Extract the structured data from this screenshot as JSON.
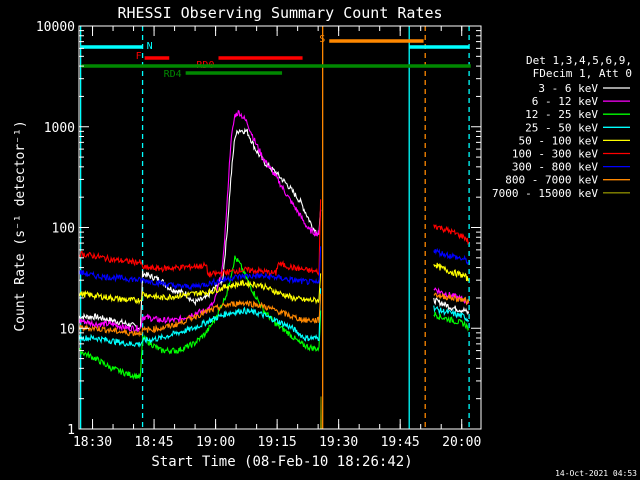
{
  "chart_data": {
    "type": "line",
    "title": "RHESSI Observing Summary Count Rates",
    "xlabel": "Start Time (08-Feb-10 18:26:42)",
    "ylabel": "Count Rate (s⁻¹ detector⁻¹)",
    "y_scale": "log",
    "ylim": [
      1,
      10000
    ],
    "xlim_minutes_after_1826": [
      0,
      98
    ],
    "x_ticks": [
      {
        "label": "18:30",
        "minute": 3.3
      },
      {
        "label": "18:45",
        "minute": 18.3
      },
      {
        "label": "19:00",
        "minute": 33.3
      },
      {
        "label": "19:15",
        "minute": 48.3
      },
      {
        "label": "19:30",
        "minute": 63.3
      },
      {
        "label": "19:45",
        "minute": 78.3
      },
      {
        "label": "20:00",
        "minute": 93.3
      }
    ],
    "y_ticks": [
      "1",
      "10",
      "100",
      "1000",
      "10000"
    ],
    "legend": {
      "header": [
        "Det 1,3,4,5,6,9,",
        "FDecim 1, Att 0"
      ],
      "placement": "right"
    },
    "flags": [
      {
        "label": "N",
        "color": "#00ffff",
        "segments": [
          [
            0.5,
            15.5
          ],
          [
            80.5,
            95
          ]
        ]
      },
      {
        "label": "F",
        "color": "#ff0000",
        "segments": [
          [
            16,
            22
          ]
        ]
      },
      {
        "label": "RD0",
        "color": "#ff0000",
        "segments": [
          [
            34,
            54.5
          ]
        ]
      },
      {
        "label": "RD4",
        "color": "#008800",
        "segments": [
          [
            26,
            49.5
          ]
        ]
      },
      {
        "label": "S",
        "color": "#ff8800",
        "segments": [
          [
            61,
            84
          ]
        ]
      },
      {
        "label": "",
        "color": "#008800",
        "segments": [
          [
            0.5,
            95.5
          ]
        ]
      }
    ],
    "vertical_markers": [
      {
        "minute": 0.4,
        "color": "#00ffff",
        "style": "solid"
      },
      {
        "minute": 15.5,
        "color": "#00ffff",
        "style": "dashed"
      },
      {
        "minute": 59.4,
        "color": "#ff8800",
        "style": "solid"
      },
      {
        "minute": 80.5,
        "color": "#00ffff",
        "style": "solid"
      },
      {
        "minute": 84.4,
        "color": "#ff8800",
        "style": "dashed"
      },
      {
        "minute": 95.1,
        "color": "#00ffff",
        "style": "dashed"
      }
    ],
    "series": [
      {
        "name": "3 - 6 keV",
        "color": "#ffffff",
        "segments": [
          [
            [
              0,
              13
            ],
            [
              4,
              13
            ],
            [
              8,
              12
            ],
            [
              12,
              11
            ],
            [
              15,
              10
            ],
            [
              15.5,
              35
            ],
            [
              20,
              30
            ],
            [
              22,
              25
            ],
            [
              26,
              22
            ],
            [
              28,
              18
            ],
            [
              31,
              20
            ],
            [
              33,
              25
            ],
            [
              35,
              30
            ],
            [
              36,
              80
            ],
            [
              37,
              300
            ],
            [
              38,
              800
            ],
            [
              39,
              930
            ],
            [
              41,
              900
            ],
            [
              43,
              600
            ],
            [
              45,
              450
            ],
            [
              48,
              350
            ],
            [
              51,
              260
            ],
            [
              54,
              180
            ],
            [
              57,
              100
            ],
            [
              58.5,
              85
            ],
            [
              58.9,
              150
            ]
          ],
          [
            [
              86.5,
              19
            ],
            [
              88,
              18
            ],
            [
              91,
              16
            ],
            [
              94,
              15
            ],
            [
              95,
              14
            ]
          ]
        ]
      },
      {
        "name": "6 - 12 keV",
        "color": "#ff00ff",
        "segments": [
          [
            [
              0,
              12
            ],
            [
              4,
              11
            ],
            [
              8,
              11
            ],
            [
              12,
              10
            ],
            [
              15,
              10
            ],
            [
              15.5,
              13
            ],
            [
              20,
              12
            ],
            [
              24,
              12
            ],
            [
              28,
              14
            ],
            [
              31,
              15
            ],
            [
              33,
              18
            ],
            [
              35,
              40
            ],
            [
              36,
              150
            ],
            [
              37,
              700
            ],
            [
              38,
              1300
            ],
            [
              39,
              1400
            ],
            [
              41,
              1100
            ],
            [
              43,
              700
            ],
            [
              45,
              480
            ],
            [
              48,
              320
            ],
            [
              51,
              200
            ],
            [
              54,
              130
            ],
            [
              56,
              95
            ],
            [
              58.5,
              85
            ],
            [
              58.9,
              150
            ]
          ],
          [
            [
              86.5,
              25
            ],
            [
              88,
              23
            ],
            [
              91,
              21
            ],
            [
              94,
              19
            ],
            [
              95,
              18
            ]
          ]
        ]
      },
      {
        "name": "12 - 25 keV",
        "color": "#00ff00",
        "segments": [
          [
            [
              0,
              6
            ],
            [
              4,
              5
            ],
            [
              8,
              4
            ],
            [
              12,
              3.5
            ],
            [
              15,
              3.3
            ],
            [
              15.5,
              8
            ],
            [
              20,
              6
            ],
            [
              24,
              6
            ],
            [
              28,
              7
            ],
            [
              31,
              9
            ],
            [
              33,
              12
            ],
            [
              36,
              22
            ],
            [
              38,
              50
            ],
            [
              39,
              45
            ],
            [
              42,
              25
            ],
            [
              45,
              15
            ],
            [
              48,
              11
            ],
            [
              51,
              9
            ],
            [
              54,
              7
            ],
            [
              56,
              6.5
            ],
            [
              58.5,
              6.2
            ],
            [
              58.9,
              15
            ]
          ],
          [
            [
              86.5,
              14
            ],
            [
              88,
              13
            ],
            [
              91,
              12
            ],
            [
              94,
              11
            ],
            [
              95,
              10
            ]
          ]
        ]
      },
      {
        "name": "25 - 50 keV",
        "color": "#00ffff",
        "segments": [
          [
            [
              0,
              8
            ],
            [
              4,
              8
            ],
            [
              8,
              7.5
            ],
            [
              12,
              7
            ],
            [
              15,
              7
            ],
            [
              15.5,
              7.5
            ],
            [
              20,
              8
            ],
            [
              24,
              9
            ],
            [
              28,
              10
            ],
            [
              32,
              12
            ],
            [
              36,
              14
            ],
            [
              40,
              15
            ],
            [
              44,
              14
            ],
            [
              48,
              12
            ],
            [
              52,
              10
            ],
            [
              55,
              8
            ],
            [
              58.5,
              8
            ],
            [
              58.9,
              25
            ]
          ],
          [
            [
              86.5,
              16
            ],
            [
              88,
              15
            ],
            [
              91,
              14
            ],
            [
              94,
              13
            ],
            [
              95,
              12
            ]
          ]
        ]
      },
      {
        "name": "50 - 100 keV",
        "color": "#ffff00",
        "segments": [
          [
            [
              0,
              22
            ],
            [
              4,
              21
            ],
            [
              8,
              20
            ],
            [
              12,
              19
            ],
            [
              15,
              19
            ],
            [
              15.5,
              22
            ],
            [
              20,
              20
            ],
            [
              24,
              21
            ],
            [
              28,
              22
            ],
            [
              32,
              23
            ],
            [
              36,
              26
            ],
            [
              40,
              28
            ],
            [
              44,
              27
            ],
            [
              48,
              23
            ],
            [
              52,
              20
            ],
            [
              55,
              19
            ],
            [
              58.5,
              19
            ],
            [
              58.9,
              35
            ]
          ],
          [
            [
              86.5,
              44
            ],
            [
              88,
              40
            ],
            [
              91,
              36
            ],
            [
              94,
              33
            ],
            [
              95,
              30
            ]
          ]
        ]
      },
      {
        "name": "100 - 300 keV",
        "color": "#ff0000",
        "segments": [
          [
            [
              0,
              55
            ],
            [
              4,
              52
            ],
            [
              8,
              48
            ],
            [
              12,
              46
            ],
            [
              15,
              45
            ],
            [
              15.5,
              40
            ],
            [
              20,
              39
            ],
            [
              24,
              40
            ],
            [
              28,
              41
            ],
            [
              31,
              42
            ],
            [
              31.5,
              34
            ],
            [
              36,
              36
            ],
            [
              40,
              38
            ],
            [
              44,
              37
            ],
            [
              48,
              35
            ],
            [
              48.5,
              44
            ],
            [
              52,
              40
            ],
            [
              55,
              38
            ],
            [
              58.5,
              36
            ],
            [
              58.9,
              190
            ]
          ],
          [
            [
              86.5,
              105
            ],
            [
              88,
              100
            ],
            [
              91,
              90
            ],
            [
              94,
              80
            ],
            [
              95,
              72
            ]
          ]
        ]
      },
      {
        "name": "300 - 800 keV",
        "color": "#0000ff",
        "segments": [
          [
            [
              0,
              36
            ],
            [
              4,
              33
            ],
            [
              8,
              32
            ],
            [
              12,
              31
            ],
            [
              15,
              30
            ],
            [
              15.5,
              30
            ],
            [
              20,
              28
            ],
            [
              24,
              26
            ],
            [
              28,
              26
            ],
            [
              32,
              28
            ],
            [
              36,
              31
            ],
            [
              40,
              33
            ],
            [
              44,
              33
            ],
            [
              48,
              32
            ],
            [
              52,
              30
            ],
            [
              55,
              29
            ],
            [
              58.5,
              28
            ],
            [
              58.9,
              65
            ]
          ],
          [
            [
              86.5,
              60
            ],
            [
              88,
              56
            ],
            [
              91,
              52
            ],
            [
              94,
              48
            ],
            [
              95,
              45
            ]
          ]
        ]
      },
      {
        "name": "800 - 7000 keV",
        "color": "#ff8800",
        "segments": [
          [
            [
              0,
              10
            ],
            [
              4,
              10
            ],
            [
              8,
              9.5
            ],
            [
              12,
              9
            ],
            [
              15,
              9
            ],
            [
              15.5,
              9.5
            ],
            [
              20,
              10
            ],
            [
              24,
              11
            ],
            [
              28,
              13
            ],
            [
              32,
              15
            ],
            [
              36,
              17
            ],
            [
              40,
              18
            ],
            [
              44,
              17
            ],
            [
              48,
              15
            ],
            [
              52,
              13
            ],
            [
              55,
              12
            ],
            [
              58.5,
              12
            ],
            [
              58.9,
              22
            ]
          ],
          [
            [
              86.5,
              22
            ],
            [
              88,
              21
            ],
            [
              91,
              20
            ],
            [
              94,
              19
            ],
            [
              95,
              18
            ]
          ]
        ]
      },
      {
        "name": "7000 - 15000 keV",
        "color": "#888800",
        "segments": [
          [
            [
              58.9,
              1.0
            ],
            [
              59,
              2.1
            ],
            [
              59.1,
              1.0
            ]
          ]
        ]
      }
    ]
  },
  "timestamp": "14-Oct-2021 04:53"
}
